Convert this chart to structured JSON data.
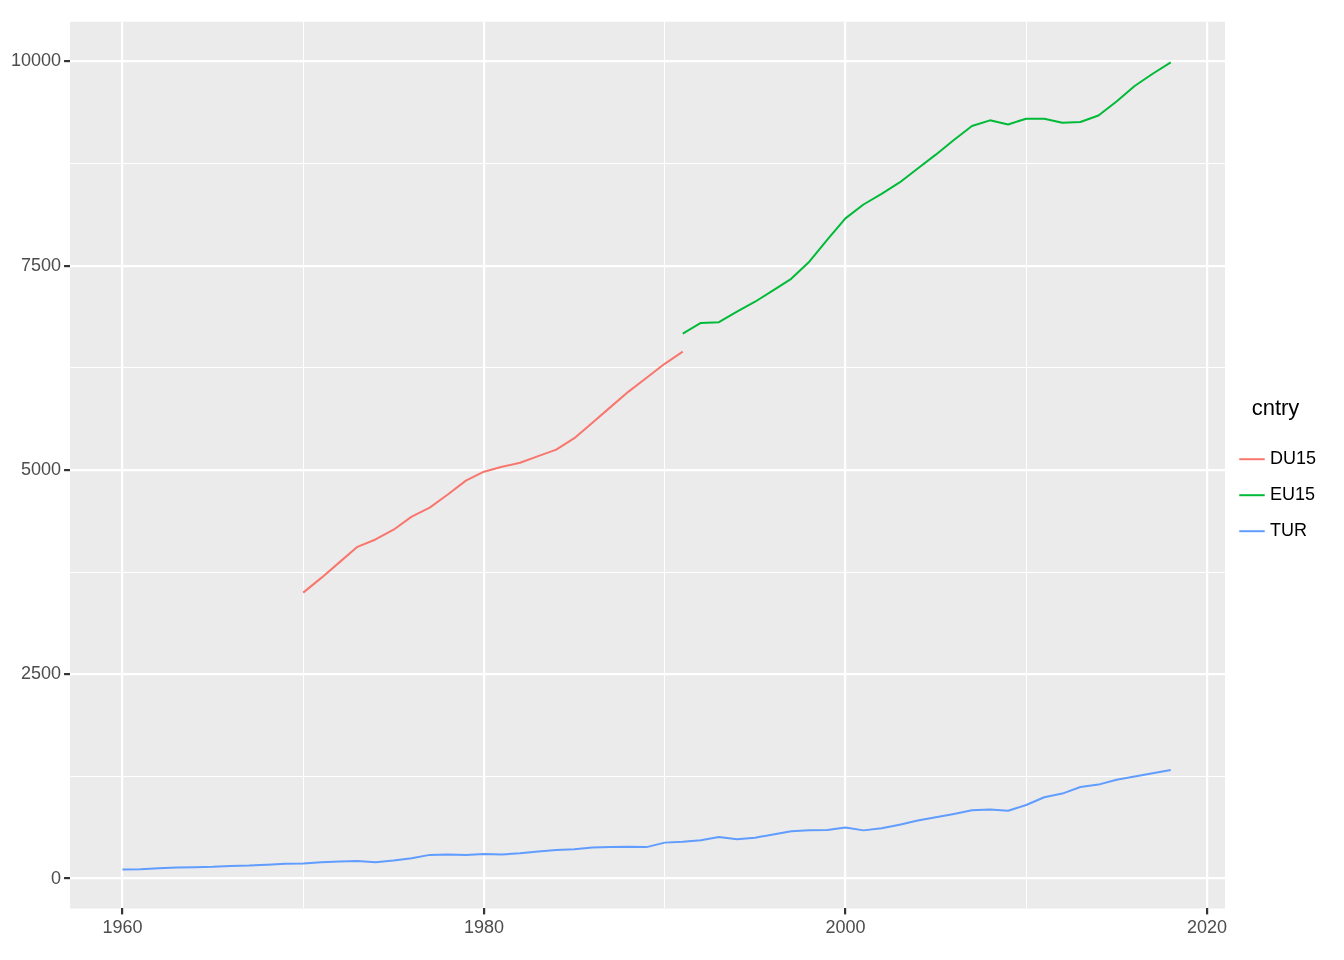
{
  "chart_data": {
    "type": "line",
    "legend_title": "cntry",
    "legend": "right",
    "grid": true,
    "marker": "none",
    "line_style": "solid",
    "xlim": [
      1957.1,
      2021
    ],
    "ylim": [
      -365,
      10486
    ],
    "xticks": [
      1960,
      {
        "value": 1970,
        "label": null
      },
      1980,
      {
        "value": 1990,
        "label": null
      },
      2000,
      {
        "value": 2010,
        "label": null
      },
      2020
    ],
    "yticks": [
      0,
      {
        "value": 1250,
        "label": null
      },
      2500,
      {
        "value": 3750,
        "label": null
      },
      5000,
      {
        "value": 6250,
        "label": null
      },
      7500,
      {
        "value": 8750,
        "label": null
      },
      10000
    ],
    "series": [
      {
        "name": "DU15",
        "color": "#f8766d",
        "x": [
          1970,
          1971,
          1972,
          1973,
          1974,
          1975,
          1976,
          1977,
          1978,
          1979,
          1980,
          1981,
          1982,
          1983,
          1984,
          1985,
          1986,
          1987,
          1988,
          1989,
          1990,
          1991
        ],
        "values": [
          3500,
          3680,
          3870,
          4060,
          4150,
          4270,
          4430,
          4540,
          4700,
          4870,
          4980,
          5040,
          5090,
          5170,
          5250,
          5390,
          5580,
          5770,
          5960,
          6130,
          6300,
          6450
        ]
      },
      {
        "name": "EU15",
        "color": "#00ba38",
        "x": [
          1991,
          1992,
          1993,
          1994,
          1995,
          1996,
          1997,
          1998,
          1999,
          2000,
          2001,
          2002,
          2003,
          2004,
          2005,
          2006,
          2007,
          2008,
          2009,
          2010,
          2011,
          2012,
          2013,
          2014,
          2015,
          2016,
          2017,
          2018
        ],
        "values": [
          6670,
          6800,
          6810,
          6940,
          7060,
          7200,
          7340,
          7550,
          7820,
          8080,
          8250,
          8380,
          8520,
          8690,
          8860,
          9040,
          9210,
          9280,
          9230,
          9300,
          9300,
          9250,
          9260,
          9340,
          9510,
          9700,
          9850,
          9990
        ]
      },
      {
        "name": "TUR",
        "color": "#619cff",
        "x": [
          1960,
          1961,
          1962,
          1963,
          1964,
          1965,
          1966,
          1967,
          1968,
          1969,
          1970,
          1971,
          1972,
          1973,
          1974,
          1975,
          1976,
          1977,
          1978,
          1979,
          1980,
          1981,
          1982,
          1983,
          1984,
          1985,
          1986,
          1987,
          1988,
          1989,
          1990,
          1991,
          1992,
          1993,
          1994,
          1995,
          1996,
          1997,
          1998,
          1999,
          2000,
          2001,
          2002,
          2003,
          2004,
          2005,
          2006,
          2007,
          2008,
          2009,
          2010,
          2011,
          2012,
          2013,
          2014,
          2015,
          2016,
          2017,
          2018
        ],
        "values": [
          110,
          115,
          125,
          135,
          140,
          145,
          155,
          160,
          170,
          180,
          185,
          200,
          210,
          215,
          200,
          220,
          250,
          290,
          295,
          290,
          300,
          295,
          310,
          330,
          350,
          360,
          380,
          385,
          390,
          385,
          440,
          450,
          470,
          510,
          480,
          500,
          540,
          580,
          590,
          595,
          625,
          590,
          615,
          660,
          710,
          750,
          790,
          835,
          845,
          830,
          900,
          995,
          1040,
          1120,
          1150,
          1210,
          1250,
          1290,
          1330
        ]
      }
    ]
  }
}
